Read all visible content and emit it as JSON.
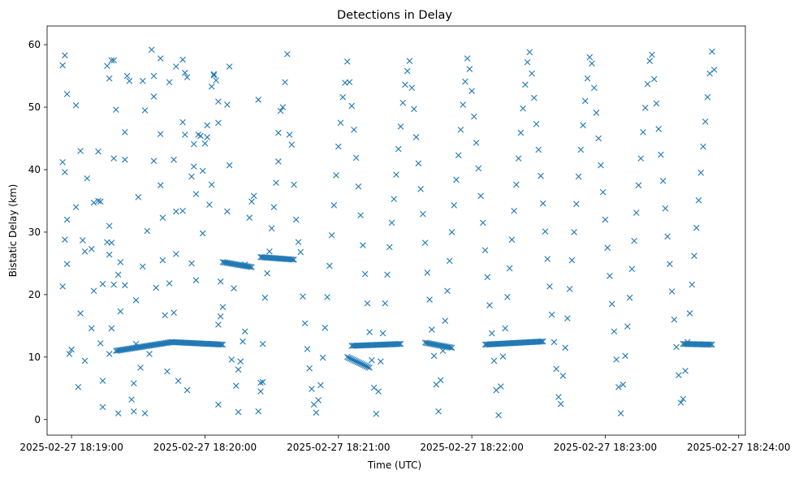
{
  "chart_data": {
    "type": "scatter",
    "title": "Detections in Delay",
    "xlabel": "Time (UTC)",
    "ylabel": "Bistatic Delay (km)",
    "marker": "x",
    "color": "#1f77b4",
    "grid": false,
    "legend": "none",
    "x_start": "2025-02-27 18:18:49",
    "x_end": "2025-02-27 18:24:03",
    "ylim": [
      -2.5,
      63
    ],
    "x_ticks": [
      "2025-02-27 18:19:00",
      "2025-02-27 18:20:00",
      "2025-02-27 18:21:00",
      "2025-02-27 18:22:00",
      "2025-02-27 18:23:00",
      "2025-02-27 18:24:00"
    ],
    "y_ticks": [
      "0",
      "10",
      "20",
      "30",
      "40",
      "50",
      "60"
    ],
    "time_unit": "seconds after 2025-02-27 18:18:00",
    "random_points": [
      [
        56,
        56.7
      ],
      [
        57,
        58.3
      ],
      [
        58,
        52.1
      ],
      [
        56,
        41.2
      ],
      [
        58,
        32.0
      ],
      [
        57,
        28.8
      ],
      [
        58,
        24.9
      ],
      [
        56,
        21.3
      ],
      [
        57,
        39.6
      ],
      [
        59,
        10.5
      ],
      [
        60,
        11.2
      ],
      [
        62,
        34.0
      ],
      [
        64,
        43.0
      ],
      [
        62,
        50.3
      ],
      [
        63,
        5.2
      ],
      [
        64,
        17.0
      ],
      [
        66,
        9.4
      ],
      [
        66,
        26.9
      ],
      [
        65,
        28.7
      ],
      [
        67,
        38.6
      ],
      [
        69,
        14.6
      ],
      [
        69,
        27.3
      ],
      [
        70,
        20.6
      ],
      [
        70,
        34.7
      ],
      [
        72,
        42.9
      ],
      [
        72,
        35.0
      ],
      [
        73,
        34.9
      ],
      [
        74,
        2.0
      ],
      [
        74,
        6.2
      ],
      [
        73,
        12.2
      ],
      [
        74,
        21.7
      ],
      [
        76,
        56.6
      ],
      [
        77,
        54.6
      ],
      [
        77,
        31.0
      ],
      [
        77,
        26.4
      ],
      [
        76,
        28.4
      ],
      [
        78,
        28.3
      ],
      [
        78,
        14.6
      ],
      [
        77,
        10.5
      ],
      [
        79,
        21.6
      ],
      [
        79,
        41.8
      ],
      [
        78,
        57.5
      ],
      [
        79,
        57.5
      ],
      [
        80,
        49.6
      ],
      [
        81,
        23.2
      ],
      [
        81,
        1.0
      ],
      [
        82,
        25.2
      ],
      [
        82,
        17.3
      ],
      [
        84,
        21.5
      ],
      [
        84,
        41.6
      ],
      [
        84,
        46.0
      ],
      [
        85,
        55.0
      ],
      [
        86,
        54.2
      ],
      [
        87,
        3.2
      ],
      [
        88,
        1.3
      ],
      [
        88,
        5.8
      ],
      [
        89,
        12.1
      ],
      [
        89,
        19.1
      ],
      [
        90,
        35.6
      ],
      [
        91,
        8.3
      ],
      [
        92,
        54.2
      ],
      [
        92,
        24.5
      ],
      [
        93,
        1.0
      ],
      [
        93,
        49.5
      ],
      [
        94,
        30.2
      ],
      [
        95,
        10.5
      ],
      [
        96,
        59.2
      ],
      [
        97,
        41.4
      ],
      [
        97,
        51.7
      ],
      [
        97,
        55.0
      ],
      [
        98,
        21.1
      ],
      [
        100,
        57.8
      ],
      [
        100,
        45.7
      ],
      [
        100,
        37.5
      ],
      [
        101,
        32.3
      ],
      [
        101,
        25.5
      ],
      [
        102,
        16.7
      ],
      [
        103,
        7.7
      ],
      [
        104,
        54.0
      ],
      [
        104,
        21.8
      ],
      [
        106,
        17.1
      ],
      [
        106,
        41.6
      ],
      [
        107,
        56.5
      ],
      [
        107,
        33.3
      ],
      [
        107,
        26.5
      ],
      [
        108,
        6.2
      ],
      [
        110,
        57.6
      ],
      [
        110,
        47.6
      ],
      [
        110,
        33.4
      ],
      [
        111,
        55.5
      ],
      [
        111,
        45.6
      ],
      [
        112,
        54.8
      ],
      [
        112,
        4.7
      ],
      [
        114,
        25.0
      ],
      [
        114,
        38.9
      ],
      [
        115,
        40.5
      ],
      [
        115,
        44.1
      ],
      [
        116,
        36.1
      ],
      [
        116,
        22.3
      ],
      [
        117,
        45.6
      ],
      [
        118,
        45.4
      ],
      [
        119,
        39.8
      ],
      [
        119,
        29.8
      ],
      [
        120,
        44.2
      ],
      [
        121,
        45.2
      ],
      [
        121,
        47.1
      ],
      [
        122,
        34.4
      ],
      [
        123,
        37.6
      ],
      [
        123,
        53.3
      ],
      [
        124,
        55.1
      ],
      [
        124,
        55.3
      ],
      [
        125,
        54.3
      ],
      [
        126,
        47.5
      ],
      [
        126,
        50.9
      ],
      [
        126,
        15.2
      ],
      [
        126,
        2.4
      ],
      [
        127,
        16.5
      ],
      [
        127,
        22.1
      ],
      [
        128,
        18.0
      ],
      [
        130,
        33.3
      ],
      [
        130,
        50.4
      ],
      [
        131,
        56.5
      ],
      [
        131,
        40.7
      ],
      [
        132,
        9.6
      ],
      [
        133,
        21.0
      ],
      [
        134,
        5.4
      ],
      [
        135,
        1.2
      ],
      [
        135,
        8.0
      ],
      [
        136,
        9.3
      ],
      [
        137,
        12.5
      ],
      [
        138,
        14.1
      ],
      [
        138,
        24.8
      ],
      [
        140,
        32.3
      ],
      [
        141,
        34.9
      ],
      [
        142,
        35.8
      ],
      [
        144,
        51.2
      ],
      [
        144,
        1.3
      ],
      [
        145,
        4.5
      ],
      [
        145,
        5.9
      ],
      [
        146,
        6.0
      ],
      [
        146,
        12.1
      ],
      [
        147,
        19.5
      ],
      [
        148,
        23.4
      ],
      [
        149,
        26.9
      ],
      [
        150,
        30.6
      ],
      [
        151,
        34.0
      ],
      [
        152,
        37.9
      ],
      [
        153,
        41.3
      ],
      [
        153,
        45.9
      ],
      [
        154,
        49.4
      ],
      [
        155,
        50.0
      ],
      [
        156,
        54.0
      ],
      [
        157,
        58.5
      ],
      [
        158,
        45.6
      ],
      [
        159,
        44.0
      ],
      [
        160,
        37.6
      ],
      [
        161,
        32.0
      ],
      [
        162,
        28.4
      ],
      [
        163,
        26.8
      ],
      [
        164,
        19.7
      ],
      [
        165,
        15.4
      ],
      [
        166,
        11.3
      ],
      [
        167,
        8.2
      ],
      [
        168,
        4.9
      ],
      [
        169,
        2.4
      ],
      [
        170,
        1.1
      ],
      [
        171,
        3.1
      ],
      [
        172,
        5.5
      ],
      [
        173,
        9.9
      ],
      [
        174,
        14.7
      ],
      [
        175,
        19.6
      ],
      [
        176,
        24.6
      ],
      [
        177,
        29.5
      ],
      [
        178,
        34.3
      ],
      [
        179,
        39.1
      ],
      [
        180,
        43.7
      ],
      [
        181,
        47.5
      ],
      [
        182,
        51.6
      ],
      [
        183,
        53.9
      ],
      [
        184,
        57.3
      ],
      [
        185,
        54.0
      ],
      [
        186,
        50.2
      ],
      [
        187,
        46.4
      ],
      [
        188,
        41.9
      ],
      [
        189,
        37.3
      ],
      [
        190,
        32.7
      ],
      [
        191,
        27.9
      ],
      [
        192,
        23.3
      ],
      [
        193,
        18.6
      ],
      [
        194,
        14.0
      ],
      [
        195,
        9.5
      ],
      [
        196,
        5.1
      ],
      [
        197,
        0.9
      ],
      [
        198,
        4.5
      ],
      [
        199,
        9.3
      ],
      [
        200,
        13.8
      ],
      [
        201,
        18.6
      ],
      [
        202,
        23.2
      ],
      [
        203,
        27.6
      ],
      [
        204,
        31.5
      ],
      [
        205,
        35.3
      ],
      [
        206,
        39.2
      ],
      [
        207,
        43.3
      ],
      [
        208,
        46.9
      ],
      [
        209,
        50.7
      ],
      [
        210,
        53.6
      ],
      [
        211,
        55.8
      ],
      [
        212,
        57.4
      ],
      [
        213,
        53.1
      ],
      [
        214,
        49.7
      ],
      [
        215,
        45.2
      ],
      [
        216,
        41.0
      ],
      [
        217,
        36.9
      ],
      [
        218,
        32.9
      ],
      [
        219,
        28.3
      ],
      [
        220,
        23.5
      ],
      [
        221,
        19.2
      ],
      [
        222,
        14.4
      ],
      [
        223,
        10.2
      ],
      [
        224,
        5.6
      ],
      [
        225,
        1.3
      ],
      [
        226,
        6.3
      ],
      [
        227,
        11.0
      ],
      [
        228,
        15.8
      ],
      [
        229,
        20.6
      ],
      [
        230,
        25.4
      ],
      [
        231,
        30.0
      ],
      [
        232,
        34.3
      ],
      [
        233,
        38.4
      ],
      [
        234,
        42.3
      ],
      [
        235,
        46.4
      ],
      [
        236,
        50.4
      ],
      [
        237,
        54.1
      ],
      [
        238,
        57.8
      ],
      [
        239,
        56.1
      ],
      [
        240,
        52.6
      ],
      [
        241,
        48.5
      ],
      [
        242,
        44.3
      ],
      [
        243,
        40.2
      ],
      [
        244,
        35.8
      ],
      [
        245,
        31.5
      ],
      [
        246,
        27.1
      ],
      [
        247,
        22.8
      ],
      [
        248,
        18.3
      ],
      [
        249,
        13.8
      ],
      [
        250,
        9.4
      ],
      [
        251,
        4.7
      ],
      [
        252,
        0.7
      ],
      [
        253,
        5.3
      ],
      [
        254,
        10.1
      ],
      [
        255,
        14.6
      ],
      [
        256,
        19.6
      ],
      [
        257,
        24.2
      ],
      [
        258,
        28.8
      ],
      [
        259,
        33.4
      ],
      [
        260,
        37.6
      ],
      [
        261,
        41.8
      ],
      [
        262,
        45.9
      ],
      [
        263,
        49.8
      ],
      [
        264,
        53.6
      ],
      [
        265,
        57.2
      ],
      [
        266,
        58.8
      ],
      [
        267,
        55.4
      ],
      [
        268,
        51.5
      ],
      [
        269,
        47.3
      ],
      [
        270,
        43.2
      ],
      [
        271,
        39.0
      ],
      [
        272,
        34.6
      ],
      [
        273,
        30.1
      ],
      [
        274,
        25.7
      ],
      [
        275,
        21.3
      ],
      [
        276,
        16.8
      ],
      [
        277,
        12.4
      ],
      [
        278,
        8.1
      ],
      [
        279,
        3.6
      ],
      [
        280,
        2.5
      ],
      [
        281,
        7.0
      ],
      [
        282,
        11.5
      ],
      [
        283,
        16.2
      ],
      [
        284,
        20.9
      ],
      [
        285,
        25.5
      ],
      [
        286,
        30.0
      ],
      [
        287,
        34.5
      ],
      [
        288,
        38.9
      ],
      [
        289,
        43.2
      ],
      [
        290,
        47.1
      ],
      [
        291,
        51.0
      ],
      [
        292,
        54.6
      ],
      [
        293,
        58.0
      ],
      [
        294,
        57.0
      ],
      [
        295,
        53.1
      ],
      [
        296,
        49.1
      ],
      [
        297,
        45.0
      ],
      [
        298,
        40.7
      ],
      [
        299,
        36.4
      ],
      [
        300,
        32.0
      ],
      [
        301,
        27.5
      ],
      [
        302,
        23.0
      ],
      [
        303,
        18.5
      ],
      [
        304,
        14.1
      ],
      [
        305,
        9.6
      ],
      [
        306,
        5.2
      ],
      [
        307,
        1.0
      ],
      [
        308,
        5.6
      ],
      [
        309,
        10.2
      ],
      [
        310,
        14.9
      ],
      [
        311,
        19.5
      ],
      [
        312,
        24.1
      ],
      [
        313,
        28.6
      ],
      [
        314,
        33.1
      ],
      [
        315,
        37.5
      ],
      [
        316,
        41.8
      ],
      [
        317,
        46.0
      ],
      [
        318,
        49.9
      ],
      [
        319,
        53.7
      ],
      [
        320,
        57.4
      ],
      [
        321,
        58.4
      ],
      [
        322,
        54.5
      ],
      [
        323,
        50.6
      ],
      [
        324,
        46.5
      ],
      [
        325,
        42.4
      ],
      [
        326,
        38.2
      ],
      [
        327,
        33.8
      ],
      [
        328,
        29.3
      ],
      [
        329,
        24.9
      ],
      [
        330,
        20.5
      ],
      [
        331,
        16.0
      ],
      [
        332,
        11.6
      ],
      [
        333,
        7.1
      ],
      [
        334,
        2.7
      ],
      [
        335,
        3.3
      ],
      [
        336,
        7.8
      ],
      [
        337,
        12.4
      ],
      [
        338,
        17.0
      ],
      [
        339,
        21.6
      ],
      [
        340,
        26.2
      ],
      [
        341,
        30.7
      ],
      [
        342,
        35.1
      ],
      [
        343,
        39.5
      ],
      [
        344,
        43.7
      ],
      [
        345,
        47.7
      ],
      [
        346,
        51.6
      ],
      [
        347,
        55.4
      ],
      [
        348,
        58.9
      ],
      [
        349,
        56.0
      ]
    ],
    "clusters": [
      {
        "t_start": 80,
        "t_end": 105,
        "delay_start": 11.0,
        "delay_end": 12.4
      },
      {
        "t_start": 105,
        "t_end": 128,
        "delay_start": 12.4,
        "delay_end": 12.0
      },
      {
        "t_start": 128,
        "t_end": 141,
        "delay_start": 25.2,
        "delay_end": 24.4
      },
      {
        "t_start": 145,
        "t_end": 160,
        "delay_start": 26.0,
        "delay_end": 25.6
      },
      {
        "t_start": 186,
        "t_end": 208,
        "delay_start": 11.8,
        "delay_end": 12.1
      },
      {
        "t_start": 184,
        "t_end": 194,
        "delay_start": 10.0,
        "delay_end": 8.3
      },
      {
        "t_start": 219,
        "t_end": 231,
        "delay_start": 12.3,
        "delay_end": 11.5
      },
      {
        "t_start": 246,
        "t_end": 272,
        "delay_start": 12.0,
        "delay_end": 12.5
      },
      {
        "t_start": 335,
        "t_end": 348,
        "delay_start": 12.1,
        "delay_end": 12.0
      }
    ]
  }
}
